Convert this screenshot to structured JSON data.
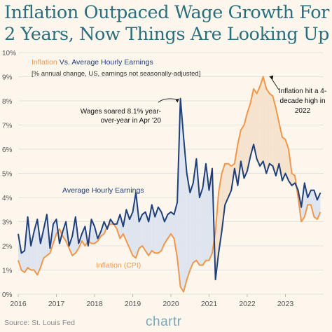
{
  "title": {
    "line1": "Inflation Outpaced Wage Growth For",
    "line2": "2 Years, Now Things Are Looking Up"
  },
  "source": "Source: St. Louis Fed",
  "brand": "chartr",
  "colors": {
    "inflation": "#f0974a",
    "earnings": "#1f3f7a",
    "fill_earnings_above": "#dfe5ef",
    "fill_inflation_above": "#f5e3cd",
    "title": "#2a6f7e",
    "grid": "#dddddd",
    "axis_text": "#555555"
  },
  "chart_data": {
    "type": "line",
    "title": "Inflation Vs. Average Hourly Earnings",
    "title_part1": "Inflation",
    "title_part2": " Vs. Average Hourly Earnings",
    "subtitle": "[% annual change, US, earnings not seasonally-adjusted]",
    "xlabel": "",
    "ylabel": "",
    "x_ticks": [
      "2016",
      "2017",
      "2018",
      "2019",
      "2020",
      "2021",
      "2022",
      "2023"
    ],
    "y_ticks": [
      "0%",
      "1%",
      "2%",
      "3%",
      "4%",
      "5%",
      "6%",
      "7%",
      "8%",
      "9%",
      "10%"
    ],
    "xlim": [
      2016.0,
      2024.0
    ],
    "ylim": [
      0,
      10
    ],
    "grid": true,
    "series": [
      {
        "name": "Average Hourly Earnings",
        "x": [
          2016.0,
          2016.083,
          2016.167,
          2016.25,
          2016.333,
          2016.417,
          2016.5,
          2016.583,
          2016.667,
          2016.75,
          2016.833,
          2016.917,
          2017.0,
          2017.083,
          2017.167,
          2017.25,
          2017.333,
          2017.417,
          2017.5,
          2017.583,
          2017.667,
          2017.75,
          2017.833,
          2017.917,
          2018.0,
          2018.083,
          2018.167,
          2018.25,
          2018.333,
          2018.417,
          2018.5,
          2018.583,
          2018.667,
          2018.75,
          2018.833,
          2018.917,
          2019.0,
          2019.083,
          2019.167,
          2019.25,
          2019.333,
          2019.417,
          2019.5,
          2019.583,
          2019.667,
          2019.75,
          2019.833,
          2019.917,
          2020.0,
          2020.083,
          2020.167,
          2020.25,
          2020.333,
          2020.417,
          2020.5,
          2020.583,
          2020.667,
          2020.75,
          2020.833,
          2020.917,
          2021.0,
          2021.083,
          2021.167,
          2021.25,
          2021.333,
          2021.417,
          2021.5,
          2021.583,
          2021.667,
          2021.75,
          2021.833,
          2021.917,
          2022.0,
          2022.083,
          2022.167,
          2022.25,
          2022.333,
          2022.417,
          2022.5,
          2022.583,
          2022.667,
          2022.75,
          2022.833,
          2022.917,
          2023.0,
          2023.083,
          2023.167,
          2023.25,
          2023.333,
          2023.417,
          2023.5,
          2023.583,
          2023.667,
          2023.75,
          2023.833,
          2023.917
        ],
        "values": [
          2.5,
          1.7,
          1.8,
          3.2,
          2.0,
          2.6,
          3.1,
          2.1,
          2.7,
          3.3,
          1.9,
          2.9,
          3.1,
          2.1,
          2.6,
          3.0,
          2.0,
          2.4,
          3.2,
          2.1,
          2.5,
          2.8,
          2.0,
          3.1,
          2.8,
          2.3,
          2.6,
          3.0,
          2.7,
          3.1,
          2.9,
          2.9,
          3.3,
          2.8,
          3.5,
          3.1,
          3.4,
          4.2,
          3.0,
          3.3,
          3.4,
          3.0,
          3.7,
          3.2,
          3.6,
          3.4,
          3.0,
          3.3,
          3.4,
          3.3,
          3.8,
          8.1,
          6.5,
          5.0,
          4.2,
          4.6,
          5.6,
          4.0,
          4.4,
          5.4,
          4.3,
          5.2,
          0.6,
          1.7,
          2.6,
          3.7,
          4.0,
          4.3,
          5.2,
          4.5,
          5.5,
          4.8,
          5.1,
          5.7,
          6.2,
          5.6,
          5.3,
          5.5,
          5.0,
          5.4,
          5.3,
          4.9,
          5.4,
          4.7,
          5.0,
          4.7,
          4.5,
          4.6,
          4.3,
          3.6,
          4.6,
          4.0,
          4.3,
          4.3,
          3.9,
          4.2
        ]
      },
      {
        "name": "Inflation (CPI)",
        "x": [
          2016.0,
          2016.083,
          2016.167,
          2016.25,
          2016.333,
          2016.417,
          2016.5,
          2016.583,
          2016.667,
          2016.75,
          2016.833,
          2016.917,
          2017.0,
          2017.083,
          2017.167,
          2017.25,
          2017.333,
          2017.417,
          2017.5,
          2017.583,
          2017.667,
          2017.75,
          2017.833,
          2017.917,
          2018.0,
          2018.083,
          2018.167,
          2018.25,
          2018.333,
          2018.417,
          2018.5,
          2018.583,
          2018.667,
          2018.75,
          2018.833,
          2018.917,
          2019.0,
          2019.083,
          2019.167,
          2019.25,
          2019.333,
          2019.417,
          2019.5,
          2019.583,
          2019.667,
          2019.75,
          2019.833,
          2019.917,
          2020.0,
          2020.083,
          2020.167,
          2020.25,
          2020.333,
          2020.417,
          2020.5,
          2020.583,
          2020.667,
          2020.75,
          2020.833,
          2020.917,
          2021.0,
          2021.083,
          2021.167,
          2021.25,
          2021.333,
          2021.417,
          2021.5,
          2021.583,
          2021.667,
          2021.75,
          2021.833,
          2021.917,
          2022.0,
          2022.083,
          2022.167,
          2022.25,
          2022.333,
          2022.417,
          2022.5,
          2022.583,
          2022.667,
          2022.75,
          2022.833,
          2022.917,
          2023.0,
          2023.083,
          2023.167,
          2023.25,
          2023.333,
          2023.417,
          2023.5,
          2023.583,
          2023.667,
          2023.75,
          2023.833,
          2023.917
        ],
        "values": [
          1.4,
          1.0,
          0.9,
          1.1,
          1.0,
          1.0,
          0.8,
          1.1,
          1.5,
          1.6,
          1.7,
          2.1,
          2.5,
          2.7,
          2.4,
          2.2,
          1.9,
          1.6,
          1.7,
          1.9,
          2.2,
          2.0,
          2.2,
          2.1,
          2.1,
          2.2,
          2.4,
          2.5,
          2.8,
          2.9,
          2.9,
          2.7,
          2.3,
          2.5,
          2.2,
          1.9,
          1.6,
          1.5,
          1.9,
          2.0,
          1.8,
          1.6,
          1.8,
          1.7,
          1.7,
          1.8,
          2.1,
          2.3,
          2.5,
          2.3,
          1.5,
          0.3,
          0.1,
          0.6,
          1.0,
          1.3,
          1.4,
          1.2,
          1.2,
          1.4,
          1.4,
          1.7,
          2.6,
          4.2,
          5.0,
          5.4,
          5.4,
          5.3,
          5.4,
          6.2,
          6.8,
          7.0,
          7.5,
          7.9,
          8.5,
          8.3,
          8.6,
          9.0,
          8.5,
          8.3,
          8.2,
          7.7,
          7.1,
          6.5,
          6.4,
          6.0,
          5.0,
          4.9,
          4.0,
          3.0,
          3.2,
          3.7,
          3.7,
          3.2,
          3.1,
          3.4
        ]
      }
    ],
    "labels": {
      "earnings": "Average Hourly Earnings",
      "inflation": "Inflation (CPI)"
    },
    "annotations": [
      {
        "x": 2020.25,
        "y": 8.1,
        "lines": [
          "Wages soared 8.1% year-",
          "over-year in Apr '20"
        ]
      },
      {
        "x": 2022.5,
        "y": 9.0,
        "lines": [
          "Inflation hit a 4-",
          "decade high in",
          "2022"
        ]
      }
    ]
  }
}
